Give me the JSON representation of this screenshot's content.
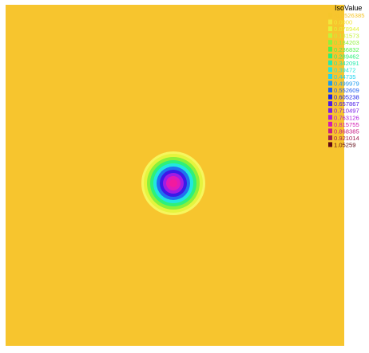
{
  "chart_data": {
    "type": "heatmap",
    "title": "",
    "xlabel": "",
    "ylabel": "",
    "grid": false,
    "legend": {
      "title": "IsoValue",
      "placement": "top-right",
      "levels": [
        {
          "label": "-0.0526385",
          "color": "#f5c52b"
        },
        {
          "label": "0.0000",
          "color": "#f2e63a"
        },
        {
          "label": "0.078944",
          "color": "#e3f23a"
        },
        {
          "label": "0.131573",
          "color": "#c4f23a"
        },
        {
          "label": "0.184203",
          "color": "#8ef23a"
        },
        {
          "label": "0.236832",
          "color": "#4ef24a"
        },
        {
          "label": "0.289462",
          "color": "#28f078"
        },
        {
          "label": "0.342091",
          "color": "#24ebac"
        },
        {
          "label": "0.39472",
          "color": "#22e8dc"
        },
        {
          "label": "0.44735",
          "color": "#20d4f0"
        },
        {
          "label": "0.499979",
          "color": "#1a9af0"
        },
        {
          "label": "0.552609",
          "color": "#1a5cf0"
        },
        {
          "label": "0.605238",
          "color": "#1a22e8"
        },
        {
          "label": "0.657867",
          "color": "#4a1ce8"
        },
        {
          "label": "0.710497",
          "color": "#7c1ce8"
        },
        {
          "label": "0.763126",
          "color": "#ad1ce0"
        },
        {
          "label": "0.815755",
          "color": "#d21cb4"
        },
        {
          "label": "0.868385",
          "color": "#c81c84"
        },
        {
          "label": "0.921014",
          "color": "#a01c50"
        },
        {
          "label": "1.05259",
          "color": "#600814"
        }
      ]
    },
    "field": {
      "background_level": "-0.0526385",
      "peak_level": "1.05259",
      "shape": "circular peak at center of domain"
    },
    "rings": [
      {
        "color": "#f6f65e"
      },
      {
        "color": "#e6f43e"
      },
      {
        "color": "#8cf03a"
      },
      {
        "color": "#2ef07a"
      },
      {
        "color": "#22e6e0"
      },
      {
        "color": "#2070f0"
      },
      {
        "color": "#3a1ae8"
      },
      {
        "color": "#a01ce4"
      },
      {
        "color": "#e01ab8"
      },
      {
        "color": "#f21a9e"
      }
    ]
  }
}
